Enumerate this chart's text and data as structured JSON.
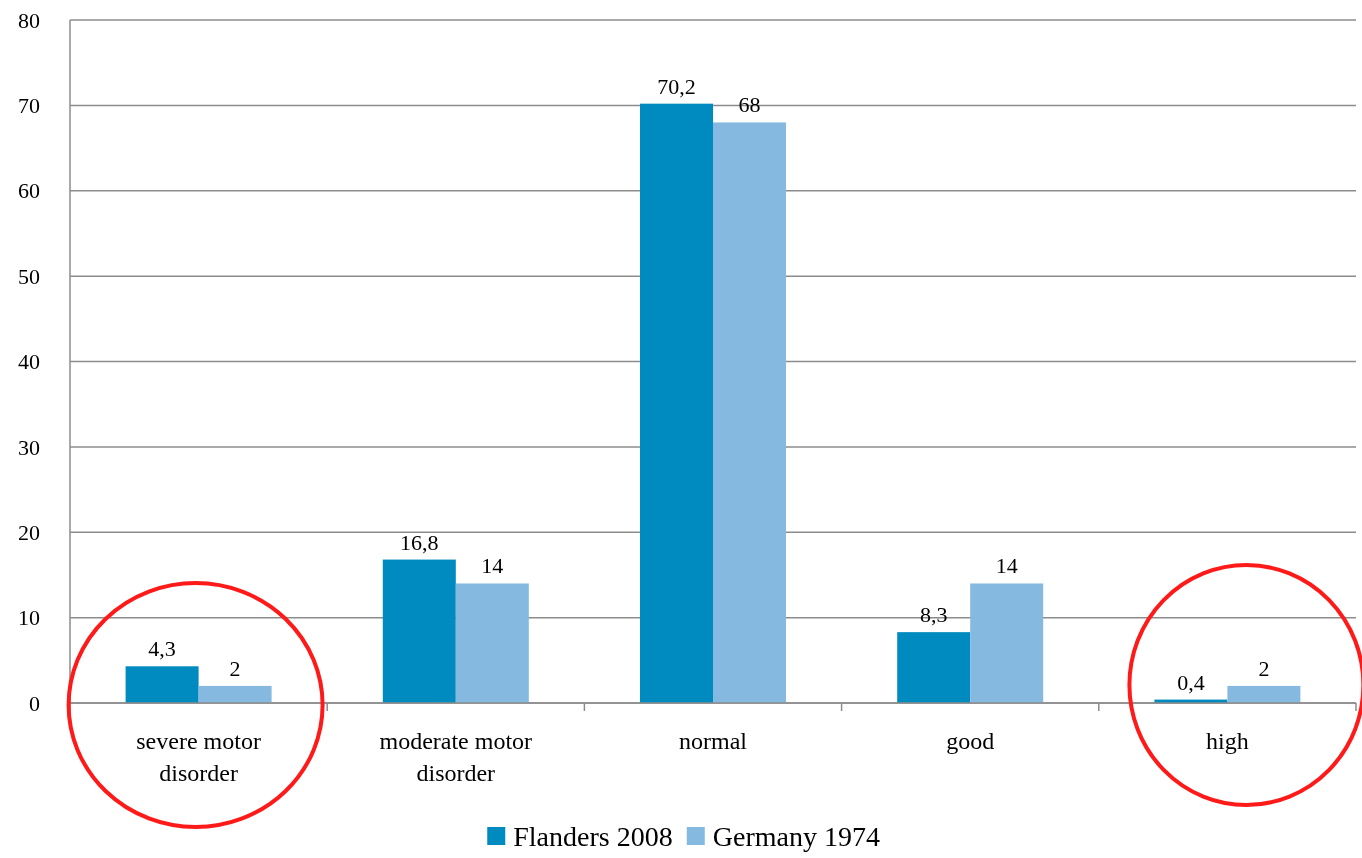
{
  "chart_data": {
    "type": "bar",
    "categories": [
      "severe motor disorder",
      "moderate motor disorder",
      "normal",
      "good",
      "high"
    ],
    "series": [
      {
        "name": "Flanders 2008",
        "color": "#008bc0",
        "values": [
          4.3,
          16.8,
          70.2,
          8.3,
          0.4
        ],
        "value_labels": [
          "4,3",
          "16,8",
          "70,2",
          "8,3",
          "0,4"
        ]
      },
      {
        "name": "Germany 1974",
        "color": "#86b9e0",
        "values": [
          2,
          14,
          68,
          14,
          2
        ],
        "value_labels": [
          "2",
          "14",
          "68",
          "14",
          "2"
        ]
      }
    ],
    "ylim": [
      0,
      80
    ],
    "yticks": [
      0,
      10,
      20,
      30,
      40,
      50,
      60,
      70,
      80
    ],
    "grid": "y",
    "legend": "bottom"
  }
}
